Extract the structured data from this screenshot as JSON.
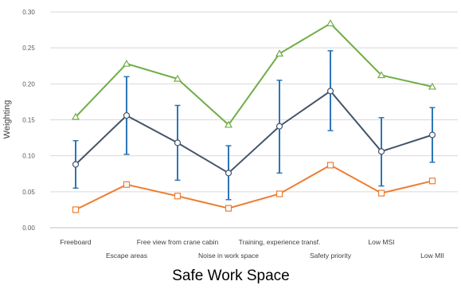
{
  "chart_data": {
    "type": "line",
    "title": "Safe Work Space",
    "xlabel": "",
    "ylabel": "Weighting",
    "ylim": [
      0,
      0.3
    ],
    "yticks": [
      "0.00",
      "0.05",
      "0.10",
      "0.15",
      "0.20",
      "0.25",
      "0.30"
    ],
    "grid": true,
    "categories": [
      "Freeboard",
      "Escape areas",
      "Free view from crane cabin",
      "Noise in work space",
      "Training, experience transf.",
      "Safety priority",
      "Low MSI",
      "Low MII"
    ],
    "series": [
      {
        "marker": "triangle",
        "color": "#70ad47",
        "values": [
          0.154,
          0.228,
          0.207,
          0.143,
          0.242,
          0.284,
          0.212,
          0.196
        ]
      },
      {
        "marker": "circle",
        "color": "#44546a",
        "values": [
          0.088,
          0.156,
          0.118,
          0.076,
          0.141,
          0.19,
          0.106,
          0.129
        ],
        "error_low": [
          0.055,
          0.102,
          0.066,
          0.039,
          0.076,
          0.135,
          0.058,
          0.091
        ],
        "error_high": [
          0.121,
          0.21,
          0.17,
          0.114,
          0.205,
          0.246,
          0.153,
          0.167
        ],
        "error_color": "#2e75b6"
      },
      {
        "marker": "square",
        "color": "#ed7d31",
        "values": [
          0.025,
          0.06,
          0.044,
          0.027,
          0.047,
          0.087,
          0.048,
          0.065
        ]
      }
    ]
  }
}
